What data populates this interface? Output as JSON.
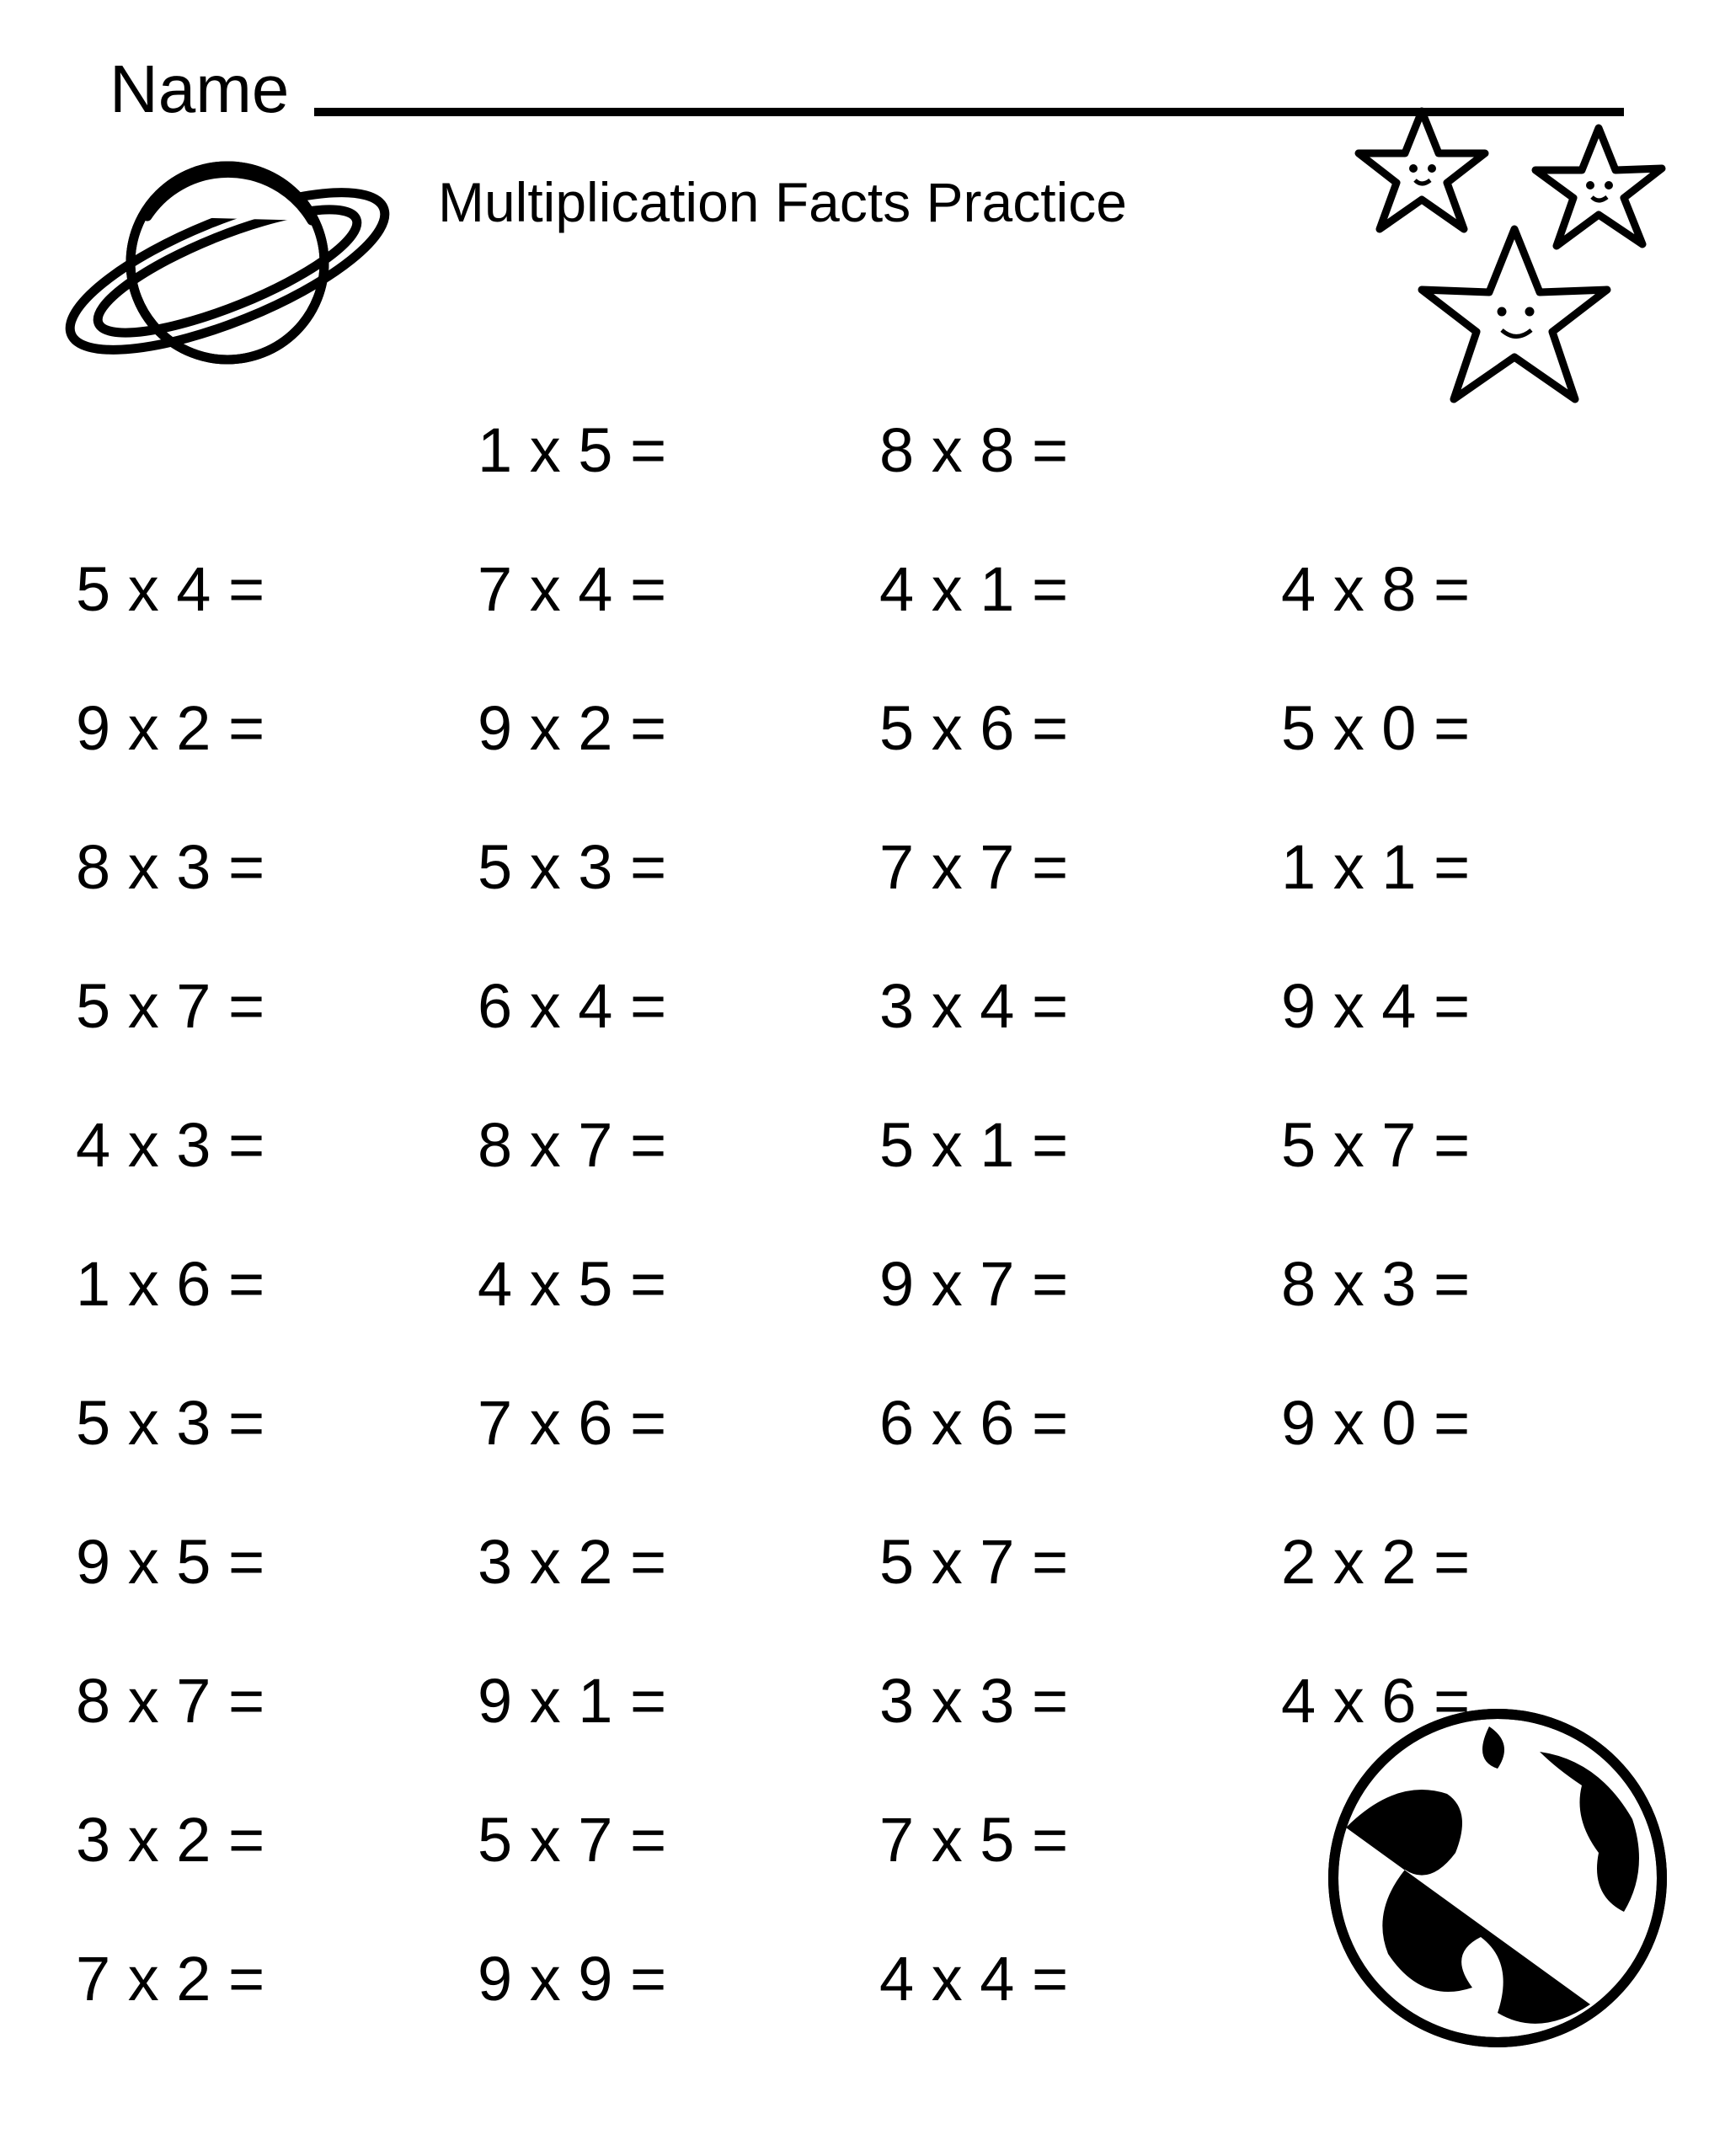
{
  "name_label": "Name",
  "title": "Multiplication Facts Practice",
  "colors": {
    "ink": "#000000",
    "paper": "#ffffff"
  },
  "font_family": "Arial",
  "font_sizes": {
    "name": 80,
    "title": 66,
    "problem": 74
  },
  "columns": [
    [
      "5 x 4 =",
      "9 x 2 =",
      "8 x 3 =",
      "5 x 7 =",
      "4 x 3 =",
      "1 x 6 =",
      "5 x 3 =",
      "9 x 5 =",
      "8 x 7 =",
      "3 x 2 =",
      "7 x 2 ="
    ],
    [
      "1 x 5 =",
      "7 x 4 =",
      "9 x 2 =",
      "5 x 3 =",
      "6 x 4 =",
      "8 x 7 =",
      "4 x 5 =",
      "7 x 6 =",
      "3 x 2 =",
      "9 x 1 =",
      "5 x 7 =",
      "9 x 9 ="
    ],
    [
      "8 x 8 =",
      "4 x 1 =",
      "5 x 6 =",
      "7 x 7 =",
      "3 x 4 =",
      "5 x 1 =",
      "9 x 7 =",
      "6 x 6 =",
      "5 x 7 =",
      "3 x 3 =",
      "7 x 5 =",
      "4 x 4 ="
    ],
    [
      "4 x 8 =",
      "5 x 0 =",
      "1 x 1 =",
      "9 x 4 =",
      "5 x 7 =",
      "8 x 3 =",
      "9 x 0 =",
      "2 x 2 =",
      "4 x 6 ="
    ]
  ],
  "decorations": {
    "top_left": "planet",
    "top_right": "stars",
    "bottom_right": "earth"
  }
}
